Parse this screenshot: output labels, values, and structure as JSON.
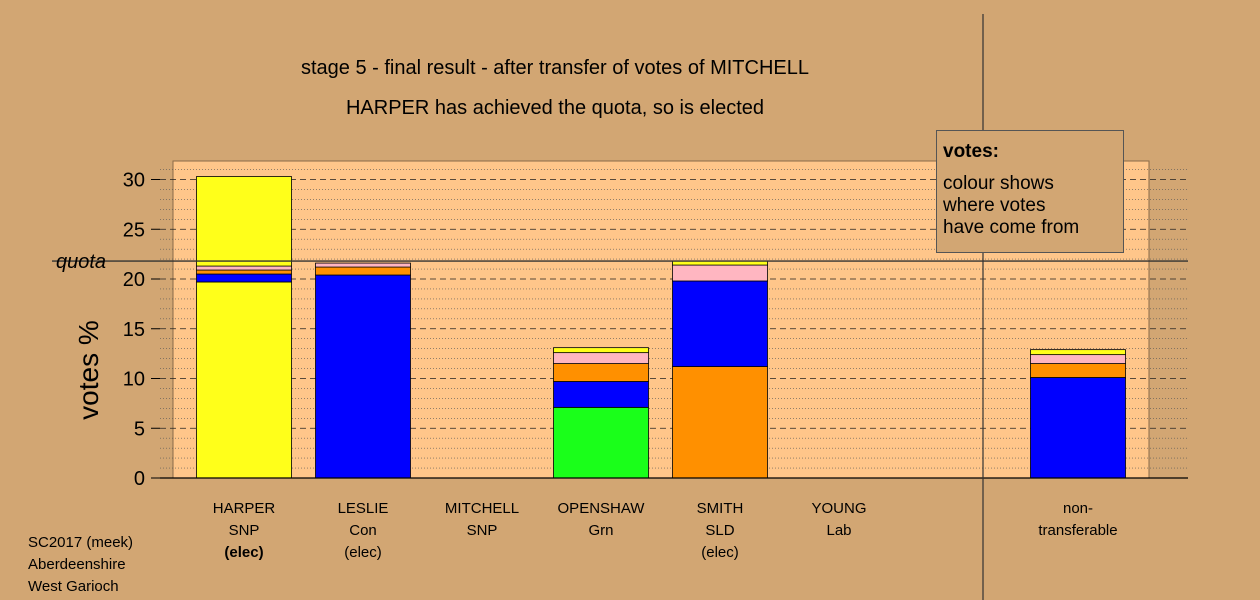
{
  "title_line1": "stage 5 - final result - after transfer of votes of MITCHELL",
  "title_line2": "HARPER has achieved the quota, so is elected",
  "footer": [
    "SC2017 (meek)",
    "Aberdeenshire",
    "West Garioch"
  ],
  "legend": {
    "title": "votes:",
    "lines": [
      "colour shows",
      "where votes",
      "have come from"
    ]
  },
  "chart_data": {
    "type": "bar",
    "stacked": true,
    "ylabel": "votes %",
    "ylim": [
      0,
      32
    ],
    "yticks": [
      0,
      5,
      10,
      15,
      20,
      25,
      30
    ],
    "quota": 21.8,
    "quota_label": "quota",
    "grid": "dashed horizontal",
    "categories": [
      {
        "name": "HARPER",
        "party": "SNP",
        "note": "(elec)",
        "bold_note": true
      },
      {
        "name": "LESLIE",
        "party": "Con",
        "note": "(elec)",
        "bold_note": false
      },
      {
        "name": "MITCHELL",
        "party": "SNP",
        "note": "",
        "bold_note": false
      },
      {
        "name": "OPENSHAW",
        "party": "Grn",
        "note": "",
        "bold_note": false
      },
      {
        "name": "SMITH",
        "party": "SLD",
        "note": "(elec)",
        "bold_note": false
      },
      {
        "name": "YOUNG",
        "party": "Lab",
        "note": "",
        "bold_note": false
      },
      {
        "name": "non-",
        "party": "transferable",
        "note": "",
        "bold_note": false
      }
    ],
    "colors": {
      "yellow": "#ffff1a",
      "blue": "#0000ff",
      "orange": "#ff9000",
      "pink": "#ffb6c1",
      "green": "#1aff1a",
      "plot_bg": "#ffc68a"
    },
    "stacks": [
      [
        {
          "color": "yellow",
          "value": 19.7
        },
        {
          "color": "blue",
          "value": 0.8
        },
        {
          "color": "orange",
          "value": 0.4
        },
        {
          "color": "pink",
          "value": 0.4
        },
        {
          "color": "yellow",
          "value": 9.0
        }
      ],
      [
        {
          "color": "blue",
          "value": 20.4
        },
        {
          "color": "orange",
          "value": 0.8
        },
        {
          "color": "pink",
          "value": 0.4
        }
      ],
      [],
      [
        {
          "color": "green",
          "value": 7.1
        },
        {
          "color": "blue",
          "value": 2.6
        },
        {
          "color": "orange",
          "value": 1.8
        },
        {
          "color": "pink",
          "value": 1.1
        },
        {
          "color": "yellow",
          "value": 0.5
        }
      ],
      [
        {
          "color": "orange",
          "value": 11.2
        },
        {
          "color": "blue",
          "value": 8.6
        },
        {
          "color": "pink",
          "value": 1.6
        },
        {
          "color": "yellow",
          "value": 0.4
        }
      ],
      [],
      [
        {
          "color": "blue",
          "value": 10.1
        },
        {
          "color": "orange",
          "value": 1.4
        },
        {
          "color": "pink",
          "value": 0.9
        },
        {
          "color": "yellow",
          "value": 0.5
        }
      ]
    ]
  }
}
